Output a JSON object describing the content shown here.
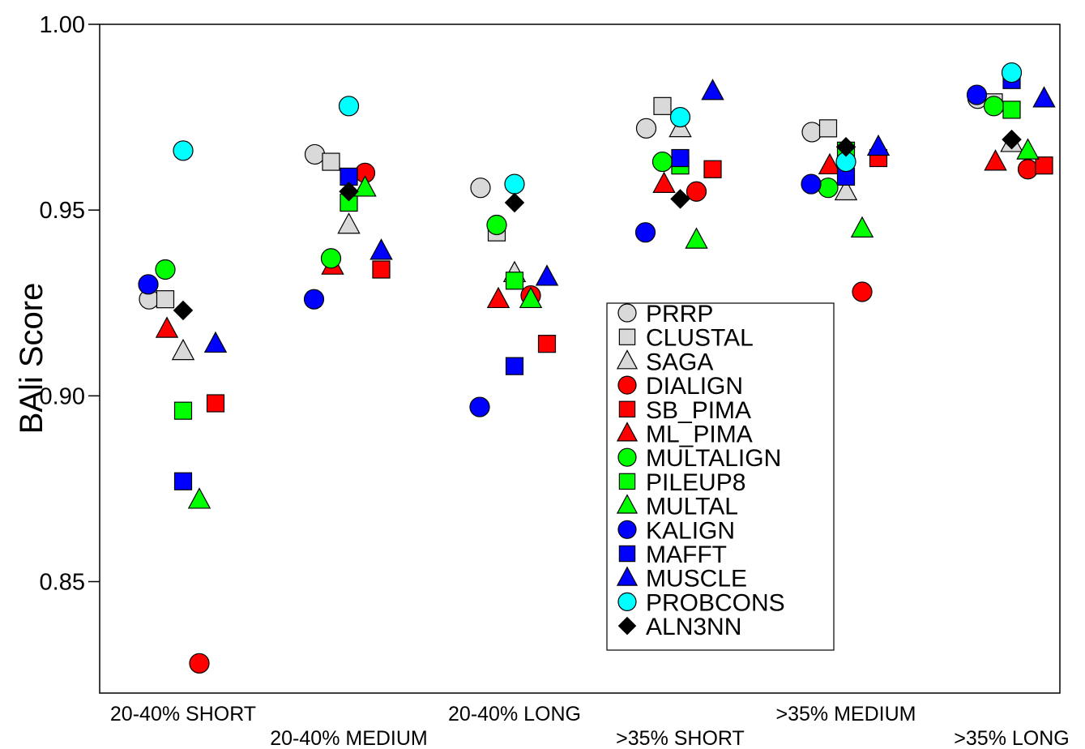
{
  "chart_data": {
    "type": "scatter",
    "title": "",
    "xlabel": "",
    "ylabel": "BAli Score",
    "ylim": [
      0.82,
      1.0
    ],
    "yticks": [
      "0.85",
      "0.90",
      "0.95",
      "1.00"
    ],
    "ytick_values": [
      0.85,
      0.9,
      0.95,
      1.0
    ],
    "grid": false,
    "legend_position": "center-right",
    "categories": [
      "20-40% SHORT",
      "20-40% MEDIUM",
      "20-40% LONG",
      ">35% SHORT",
      ">35% MEDIUM",
      ">35% LONG"
    ],
    "series": [
      {
        "name": "PRRP",
        "marker": "circle",
        "color": "#d9d9d9",
        "values": [
          0.926,
          0.965,
          0.956,
          0.972,
          0.971,
          0.98
        ]
      },
      {
        "name": "CLUSTAL",
        "marker": "square",
        "color": "#d9d9d9",
        "values": [
          0.926,
          0.963,
          0.944,
          0.978,
          0.972,
          0.979
        ]
      },
      {
        "name": "SAGA",
        "marker": "triangle",
        "color": "#d9d9d9",
        "values": [
          0.912,
          0.946,
          0.933,
          0.972,
          0.955,
          0.968
        ]
      },
      {
        "name": "DIALIGN",
        "marker": "circle",
        "color": "#ff0000",
        "values": [
          0.828,
          0.96,
          0.927,
          0.955,
          0.928,
          0.961
        ]
      },
      {
        "name": "SB_PIMA",
        "marker": "square",
        "color": "#ff0000",
        "values": [
          0.898,
          0.934,
          0.914,
          0.961,
          0.964,
          0.962
        ]
      },
      {
        "name": "ML_PIMA",
        "marker": "triangle",
        "color": "#ff0000",
        "values": [
          0.918,
          0.935,
          0.926,
          0.957,
          0.962,
          0.963
        ]
      },
      {
        "name": "MULTALIGN",
        "marker": "circle",
        "color": "#00ff00",
        "values": [
          0.934,
          0.937,
          0.946,
          0.963,
          0.956,
          0.978
        ]
      },
      {
        "name": "PILEUP8",
        "marker": "square",
        "color": "#00ff00",
        "values": [
          0.896,
          0.952,
          0.931,
          0.962,
          0.966,
          0.977
        ]
      },
      {
        "name": "MULTAL",
        "marker": "triangle",
        "color": "#00ff00",
        "values": [
          0.872,
          0.956,
          0.926,
          0.942,
          0.945,
          0.966
        ]
      },
      {
        "name": "KALIGN",
        "marker": "circle",
        "color": "#0000ff",
        "values": [
          0.93,
          0.926,
          0.897,
          0.944,
          0.957,
          0.981
        ]
      },
      {
        "name": "MAFFT",
        "marker": "square",
        "color": "#0000ff",
        "values": [
          0.877,
          0.959,
          0.908,
          0.964,
          0.959,
          0.985
        ]
      },
      {
        "name": "MUSCLE",
        "marker": "triangle",
        "color": "#0000ff",
        "values": [
          0.914,
          0.939,
          0.932,
          0.982,
          0.967,
          0.98
        ]
      },
      {
        "name": "PROBCONS",
        "marker": "circle",
        "color": "#00ffff",
        "values": [
          0.966,
          0.978,
          0.957,
          0.975,
          0.963,
          0.987
        ]
      },
      {
        "name": "ALN3NN",
        "marker": "diamond",
        "color": "#000000",
        "values": [
          0.923,
          0.955,
          0.952,
          0.953,
          0.967,
          0.969
        ]
      }
    ]
  }
}
